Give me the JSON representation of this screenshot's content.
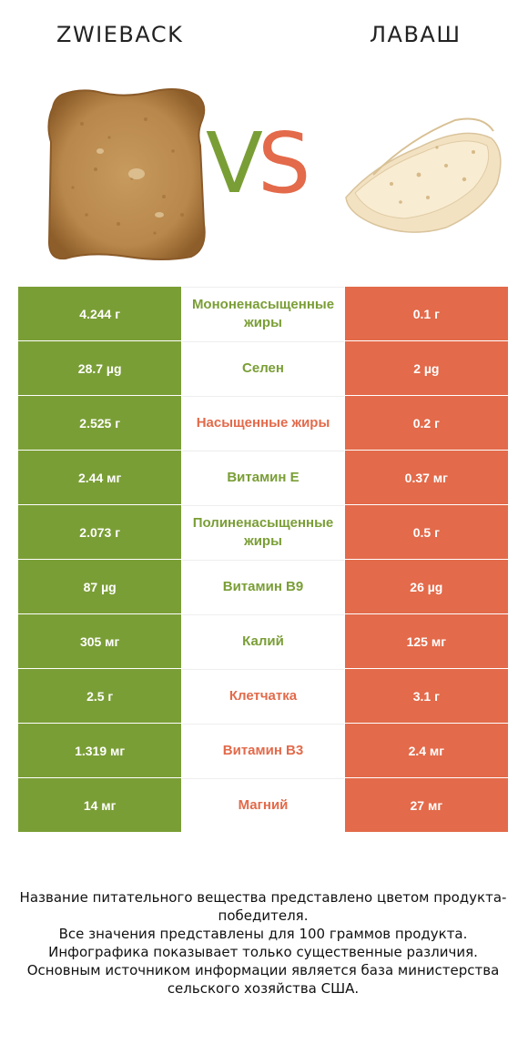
{
  "header": {
    "left_title": "ZWIEBACK",
    "right_title": "ЛАВАШ",
    "vs_v": "V",
    "vs_s": "S"
  },
  "colors": {
    "left": "#7a9e36",
    "right": "#e36a4a"
  },
  "rows": [
    {
      "left": "4.244 г",
      "label": "Мононенасыщенные жиры",
      "right": "0.1 г",
      "winner": "left"
    },
    {
      "left": "28.7 µg",
      "label": "Селен",
      "right": "2 µg",
      "winner": "left"
    },
    {
      "left": "2.525 г",
      "label": "Насыщенные жиры",
      "right": "0.2 г",
      "winner": "right"
    },
    {
      "left": "2.44 мг",
      "label": "Витамин E",
      "right": "0.37 мг",
      "winner": "left"
    },
    {
      "left": "2.073 г",
      "label": "Полиненасыщенные жиры",
      "right": "0.5 г",
      "winner": "left"
    },
    {
      "left": "87 µg",
      "label": "Витамин B9",
      "right": "26 µg",
      "winner": "left"
    },
    {
      "left": "305 мг",
      "label": "Калий",
      "right": "125 мг",
      "winner": "left"
    },
    {
      "left": "2.5 г",
      "label": "Клетчатка",
      "right": "3.1 г",
      "winner": "right"
    },
    {
      "left": "1.319 мг",
      "label": "Витамин B3",
      "right": "2.4 мг",
      "winner": "right"
    },
    {
      "left": "14 мг",
      "label": "Магний",
      "right": "27 мг",
      "winner": "right"
    }
  ],
  "footer": {
    "line1": "Название питательного вещества представлено цветом продукта-победителя.",
    "line2": "Все значения представлены для 100 граммов продукта.",
    "line3": "Инфографика показывает только существенные различия.",
    "line4": "Основным источником информации является база министерства сельского хозяйства США."
  }
}
